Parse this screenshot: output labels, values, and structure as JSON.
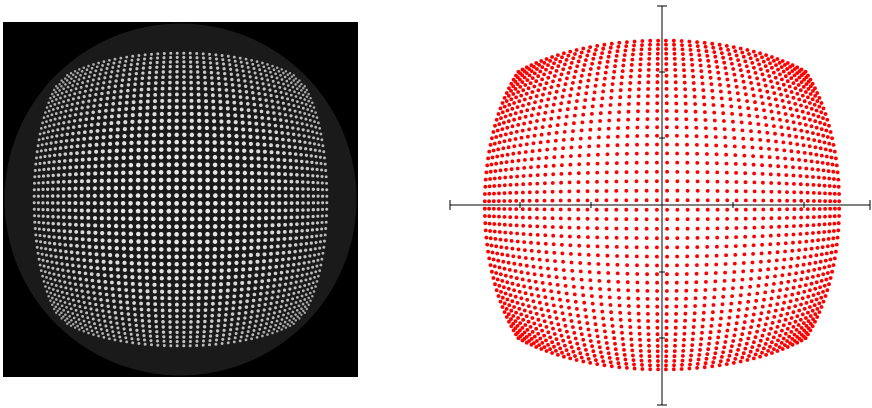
{
  "photo": {
    "background_color": "#000000",
    "dot_color": "#f2f2f2",
    "grid_rows": 46,
    "grid_cols": 46
  },
  "plot": {
    "axes_color": "#000000",
    "dot_color": "#ff0000",
    "x_ticks": 5,
    "y_ticks": 5,
    "grid_rows": 46,
    "grid_cols": 46
  }
}
